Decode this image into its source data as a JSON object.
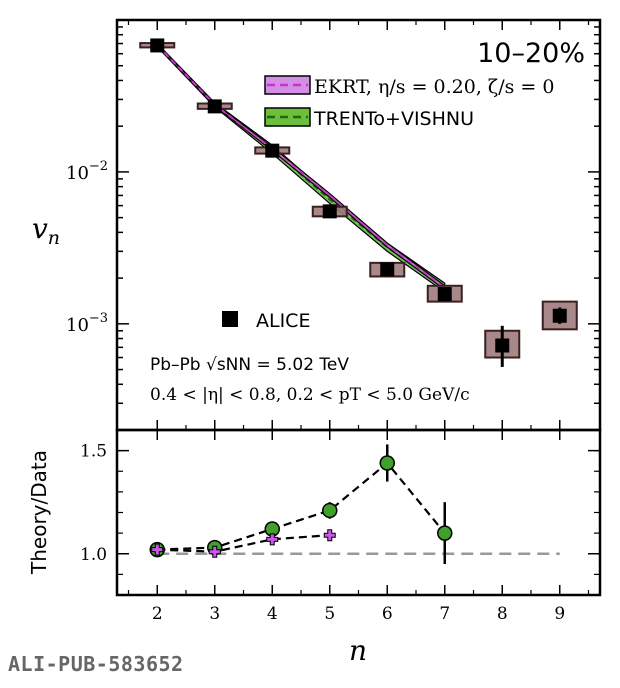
{
  "chart_data": [
    {
      "type": "scatter",
      "panel": "top",
      "scale": "log",
      "ylabel": "v_n",
      "ylim": [
        0.0002,
        0.1
      ],
      "xlim": [
        1.3,
        9.7
      ],
      "yticks": [
        {
          "value": 0.01,
          "base": "10",
          "exp": "−2"
        },
        {
          "value": 0.001,
          "base": "10",
          "exp": "−3"
        }
      ],
      "centrality_label": "10–20%",
      "legend": [
        {
          "label": "EKRT, η/s = 0.20, ζ/s = 0",
          "color": "#cc66dd",
          "line": "#cc33cc"
        },
        {
          "label": "TRENTo+VISHNU",
          "color": "#44aa22",
          "line": "#226611"
        }
      ],
      "data_legend": "ALICE",
      "annotation_line1": "Pb–Pb √sNN = 5.02 TeV",
      "annotation_line2": "0.4 < |η| < 0.8, 0.2 < pT < 5.0 GeV/c",
      "data_series": {
        "name": "ALICE",
        "n": [
          2,
          3,
          4,
          5,
          6,
          7,
          8,
          9
        ],
        "values": [
          0.068,
          0.027,
          0.0138,
          0.0055,
          0.00228,
          0.00157,
          0.00072,
          0.00113
        ],
        "stat_low": [
          0.068,
          0.027,
          0.0138,
          0.0055,
          0.00228,
          0.00157,
          0.00052,
          0.001
        ],
        "stat_high": [
          0.068,
          0.027,
          0.0138,
          0.0055,
          0.00228,
          0.00157,
          0.00097,
          0.00128
        ],
        "sys_low": [
          0.066,
          0.026,
          0.0132,
          0.0051,
          0.00205,
          0.0014,
          0.0006,
          0.00092
        ],
        "sys_high": [
          0.0705,
          0.0282,
          0.0145,
          0.0059,
          0.00252,
          0.00178,
          0.0009,
          0.0014
        ]
      },
      "theory": [
        {
          "name": "EKRT",
          "n": [
            2,
            3,
            4,
            5,
            6,
            7
          ],
          "low": [
            0.067,
            0.0272,
            0.0138,
            0.0068,
            0.0032,
            0.00168
          ],
          "high": [
            0.0695,
            0.0282,
            0.0146,
            0.0072,
            0.0034,
            0.00178
          ]
        },
        {
          "name": "TRENTo+VISHNU",
          "n": [
            2,
            3,
            4,
            5,
            6,
            7
          ],
          "low": [
            0.0665,
            0.0268,
            0.0132,
            0.0062,
            0.003,
            0.00162
          ],
          "high": [
            0.07,
            0.0285,
            0.015,
            0.007,
            0.0034,
            0.00185
          ]
        }
      ]
    },
    {
      "type": "line",
      "panel": "bottom",
      "ylabel": "Theory/Data",
      "xlabel": "n",
      "ylim": [
        0.8,
        1.6
      ],
      "yticks": [
        "1.0",
        "1.5"
      ],
      "xticks": [
        "2",
        "3",
        "4",
        "5",
        "6",
        "7",
        "8",
        "9"
      ],
      "reference": 1.0,
      "series": [
        {
          "name": "TRENTo+VISHNU",
          "n": [
            2,
            3,
            4,
            5,
            6,
            7
          ],
          "values": [
            1.02,
            1.03,
            1.12,
            1.21,
            1.44,
            1.1
          ],
          "err": [
            0.01,
            0.01,
            0.02,
            0.04,
            0.09,
            0.15
          ]
        },
        {
          "name": "EKRT",
          "n": [
            2,
            3,
            4,
            5
          ],
          "values": [
            1.02,
            1.01,
            1.07,
            1.09
          ],
          "err": [
            0.0,
            0.0,
            0.0,
            0.0
          ]
        }
      ]
    }
  ],
  "footer": "ALI-PUB-583652"
}
